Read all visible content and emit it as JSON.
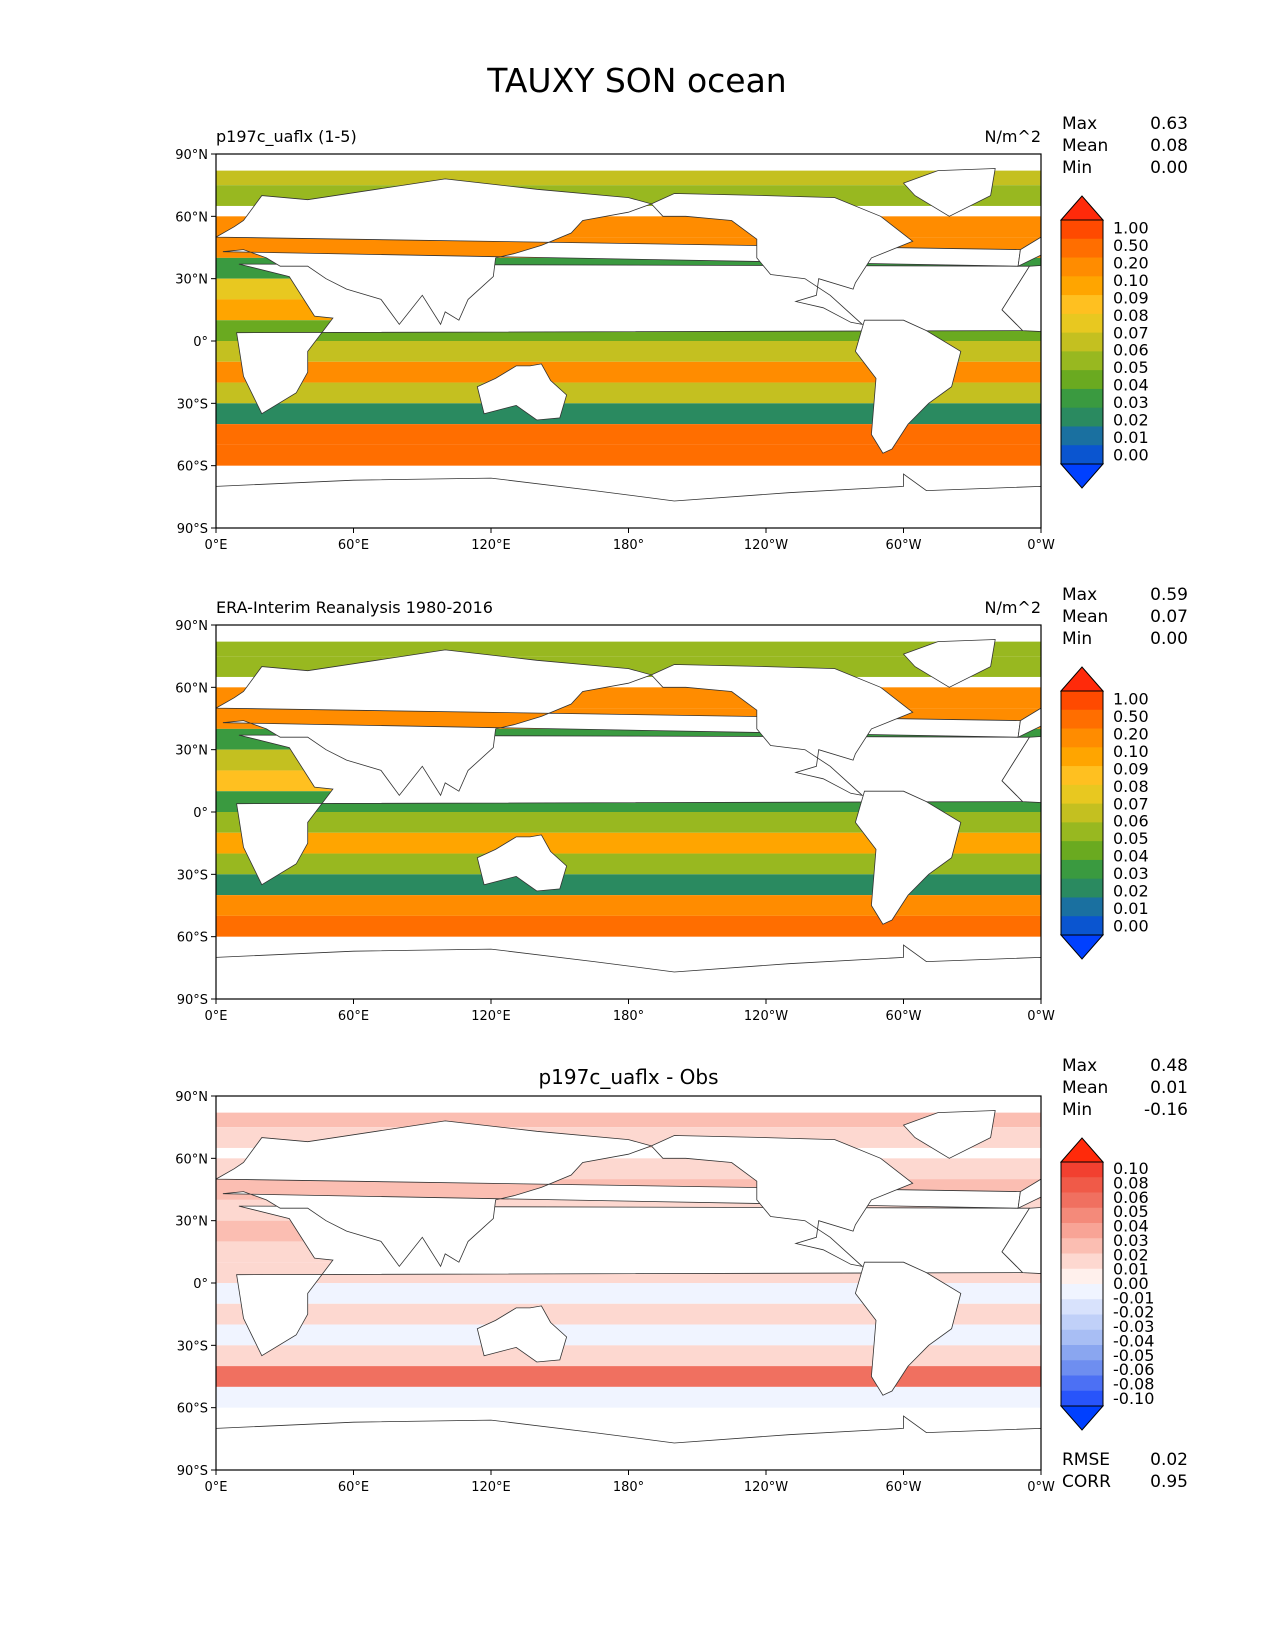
{
  "chart_data": {
    "type": "heatmap",
    "title": "TAUXY SON ocean",
    "panels": [
      {
        "id": "model",
        "left_title": "p197c_uaflx (1-5)",
        "units": "N/m^2",
        "stats": [
          {
            "label": "Max",
            "value": "0.63"
          },
          {
            "label": "Mean",
            "value": "0.08"
          },
          {
            "label": "Min",
            "value": "0.00"
          }
        ],
        "colorbar": {
          "levels": [
            "1.00",
            "0.50",
            "0.20",
            "0.10",
            "0.09",
            "0.08",
            "0.07",
            "0.06",
            "0.05",
            "0.04",
            "0.03",
            "0.02",
            "0.01",
            "0.00"
          ],
          "colors": [
            "#ff2a0a",
            "#ff4a00",
            "#ff6e00",
            "#ff8c00",
            "#ffa500",
            "#ffc020",
            "#e8c820",
            "#c4c020",
            "#98b820",
            "#6aaa20",
            "#3a9a40",
            "#2a8a60",
            "#1a70a0",
            "#0a55d0",
            "#0040ff"
          ]
        },
        "bands": [
          {
            "lat": 80,
            "value": 0.06
          },
          {
            "lat": 70,
            "value": 0.05
          },
          {
            "lat": 55,
            "value": 0.15
          },
          {
            "lat": 45,
            "value": 0.12
          },
          {
            "lat": 35,
            "value": 0.03
          },
          {
            "lat": 25,
            "value": 0.07
          },
          {
            "lat": 15,
            "value": 0.09
          },
          {
            "lat": 5,
            "value": 0.04
          },
          {
            "lat": -5,
            "value": 0.06
          },
          {
            "lat": -15,
            "value": 0.1
          },
          {
            "lat": -25,
            "value": 0.06
          },
          {
            "lat": -35,
            "value": 0.02
          },
          {
            "lat": -45,
            "value": 0.2
          },
          {
            "lat": -55,
            "value": 0.25
          }
        ]
      },
      {
        "id": "obs",
        "left_title": "ERA-Interim Reanalysis 1980-2016",
        "units": "N/m^2",
        "stats": [
          {
            "label": "Max",
            "value": "0.59"
          },
          {
            "label": "Mean",
            "value": "0.07"
          },
          {
            "label": "Min",
            "value": "0.00"
          }
        ],
        "colorbar": {
          "levels": [
            "1.00",
            "0.50",
            "0.20",
            "0.10",
            "0.09",
            "0.08",
            "0.07",
            "0.06",
            "0.05",
            "0.04",
            "0.03",
            "0.02",
            "0.01",
            "0.00"
          ],
          "colors": [
            "#ff2a0a",
            "#ff4a00",
            "#ff6e00",
            "#ff8c00",
            "#ffa500",
            "#ffc020",
            "#e8c820",
            "#c4c020",
            "#98b820",
            "#6aaa20",
            "#3a9a40",
            "#2a8a60",
            "#1a70a0",
            "#0a55d0",
            "#0040ff"
          ]
        },
        "bands": [
          {
            "lat": 80,
            "value": 0.05
          },
          {
            "lat": 70,
            "value": 0.05
          },
          {
            "lat": 55,
            "value": 0.12
          },
          {
            "lat": 45,
            "value": 0.12
          },
          {
            "lat": 35,
            "value": 0.03
          },
          {
            "lat": 25,
            "value": 0.06
          },
          {
            "lat": 15,
            "value": 0.08
          },
          {
            "lat": 5,
            "value": 0.03
          },
          {
            "lat": -5,
            "value": 0.05
          },
          {
            "lat": -15,
            "value": 0.09
          },
          {
            "lat": -25,
            "value": 0.05
          },
          {
            "lat": -35,
            "value": 0.02
          },
          {
            "lat": -45,
            "value": 0.18
          },
          {
            "lat": -55,
            "value": 0.2
          }
        ]
      },
      {
        "id": "diff",
        "center_title": "p197c_uaflx - Obs",
        "stats": [
          {
            "label": "Max",
            "value": "0.48"
          },
          {
            "label": "Mean",
            "value": "0.01"
          },
          {
            "label": "Min",
            "value": "-0.16"
          }
        ],
        "extra_stats": [
          {
            "label": "RMSE",
            "value": "0.02"
          },
          {
            "label": "CORR",
            "value": "0.95"
          }
        ],
        "colorbar": {
          "levels": [
            "0.10",
            "0.08",
            "0.06",
            "0.05",
            "0.04",
            "0.03",
            "0.02",
            "0.01",
            "0.00",
            "-0.01",
            "-0.02",
            "-0.03",
            "-0.04",
            "-0.05",
            "-0.06",
            "-0.08",
            "-0.10"
          ],
          "colors": [
            "#ff2a0a",
            "#f24030",
            "#f05a48",
            "#f07060",
            "#f48a7a",
            "#f8a496",
            "#fbbeb2",
            "#fdd8d0",
            "#fff0ec",
            "#f0f4ff",
            "#d8e2fc",
            "#c0d0f8",
            "#a8bef4",
            "#8aa6f0",
            "#6e8ef0",
            "#4c70f4",
            "#2854fa",
            "#0040ff"
          ]
        },
        "bands": [
          {
            "lat": 80,
            "value": 0.02
          },
          {
            "lat": 70,
            "value": 0.01
          },
          {
            "lat": 55,
            "value": 0.01
          },
          {
            "lat": 45,
            "value": 0.02
          },
          {
            "lat": 35,
            "value": 0.01
          },
          {
            "lat": 25,
            "value": 0.02
          },
          {
            "lat": 15,
            "value": 0.01
          },
          {
            "lat": 5,
            "value": 0.01
          },
          {
            "lat": -5,
            "value": -0.01
          },
          {
            "lat": -15,
            "value": 0.01
          },
          {
            "lat": -25,
            "value": -0.01
          },
          {
            "lat": -35,
            "value": 0.01
          },
          {
            "lat": -45,
            "value": 0.05
          },
          {
            "lat": -55,
            "value": -0.01
          }
        ]
      }
    ],
    "x_ticks": [
      "0°E",
      "60°E",
      "120°E",
      "180°",
      "120°W",
      "60°W",
      "0°W"
    ],
    "y_ticks": [
      "90°N",
      "60°N",
      "30°N",
      "0°",
      "30°S",
      "60°S",
      "90°S"
    ],
    "xlim": [
      0,
      360
    ],
    "ylim": [
      -90,
      90
    ]
  }
}
